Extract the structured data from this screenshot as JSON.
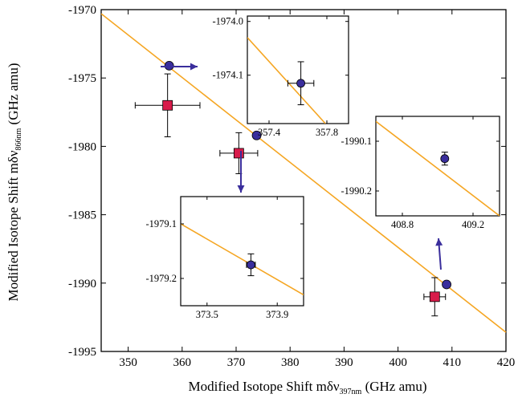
{
  "chart_data": {
    "type": "scatter",
    "xlabel": {
      "main": "Modified Isotope Shift mδν",
      "subscript": "397nm",
      "unit": " (GHz amu)"
    },
    "ylabel": {
      "main": "Modified Isotope Shift mδν",
      "subscript": "866nm",
      "unit": " (GHz amu)"
    },
    "xlim": [
      345,
      420
    ],
    "ylim": [
      -1995,
      -1970
    ],
    "xticks": [
      350,
      360,
      370,
      380,
      390,
      400,
      410,
      420
    ],
    "yticks": [
      -1970,
      -1975,
      -1980,
      -1985,
      -1990,
      -1995
    ],
    "fit_line": {
      "color": "#F5A623",
      "points": [
        [
          345,
          -1970.3
        ],
        [
          420,
          -1993.6
        ]
      ]
    },
    "series": [
      {
        "marker": "square",
        "color": "#D81B4A",
        "points": [
          {
            "x": 357.3,
            "y": -1977.0,
            "xerr": 6.0,
            "yerr": 2.3
          },
          {
            "x": 370.5,
            "y": -1980.5,
            "xerr": 3.5,
            "yerr": 1.5
          },
          {
            "x": 406.8,
            "y": -1991.0,
            "xerr": 2.0,
            "yerr": 1.4
          }
        ]
      },
      {
        "marker": "circle",
        "color": "#3A2E9C",
        "points": [
          {
            "x": 357.6,
            "y": -1974.1
          },
          {
            "x": 373.8,
            "y": -1979.2
          },
          {
            "x": 409.0,
            "y": -1990.1
          }
        ]
      }
    ],
    "arrow_color": "#3A2E9C",
    "insets": [
      {
        "xlim": [
          357.25,
          357.95
        ],
        "ylim": [
          -1974.19,
          -1973.99
        ],
        "xticks": [
          "357.4",
          "357.8"
        ],
        "xtick_values": [
          357.4,
          357.8
        ],
        "yticks": [
          "-1974.0",
          "-1974.1"
        ],
        "ytick_values": [
          -1974.0,
          -1974.1
        ],
        "point": {
          "x": 357.62,
          "y": -1974.115,
          "xerr": 0.09,
          "yerr": 0.04
        },
        "line": [
          [
            357.25,
            -1974.03
          ],
          [
            357.79,
            -1974.19
          ]
        ]
      },
      {
        "xlim": [
          373.35,
          374.05
        ],
        "ylim": [
          -1979.25,
          -1979.05
        ],
        "xticks": [
          "373.5",
          "373.9"
        ],
        "xtick_values": [
          373.5,
          373.9
        ],
        "yticks": [
          "-1979.1",
          "-1979.2"
        ],
        "ytick_values": [
          -1979.1,
          -1979.2
        ],
        "point": {
          "x": 373.75,
          "y": -1979.175,
          "xerr": 0.025,
          "yerr": 0.02
        },
        "line": [
          [
            373.35,
            -1979.1
          ],
          [
            374.05,
            -1979.23
          ]
        ]
      },
      {
        "xlim": [
          408.65,
          409.35
        ],
        "ylim": [
          -1990.25,
          -1990.05
        ],
        "xticks": [
          "408.8",
          "409.2"
        ],
        "xtick_values": [
          408.8,
          409.2
        ],
        "yticks": [
          "-1990.1",
          "-1990.2"
        ],
        "ytick_values": [
          -1990.1,
          -1990.2
        ],
        "point": {
          "x": 409.04,
          "y": -1990.135,
          "xerr": 0.015,
          "yerr": 0.013
        },
        "line": [
          [
            408.65,
            -1990.06
          ],
          [
            409.35,
            -1990.25
          ]
        ]
      }
    ]
  }
}
